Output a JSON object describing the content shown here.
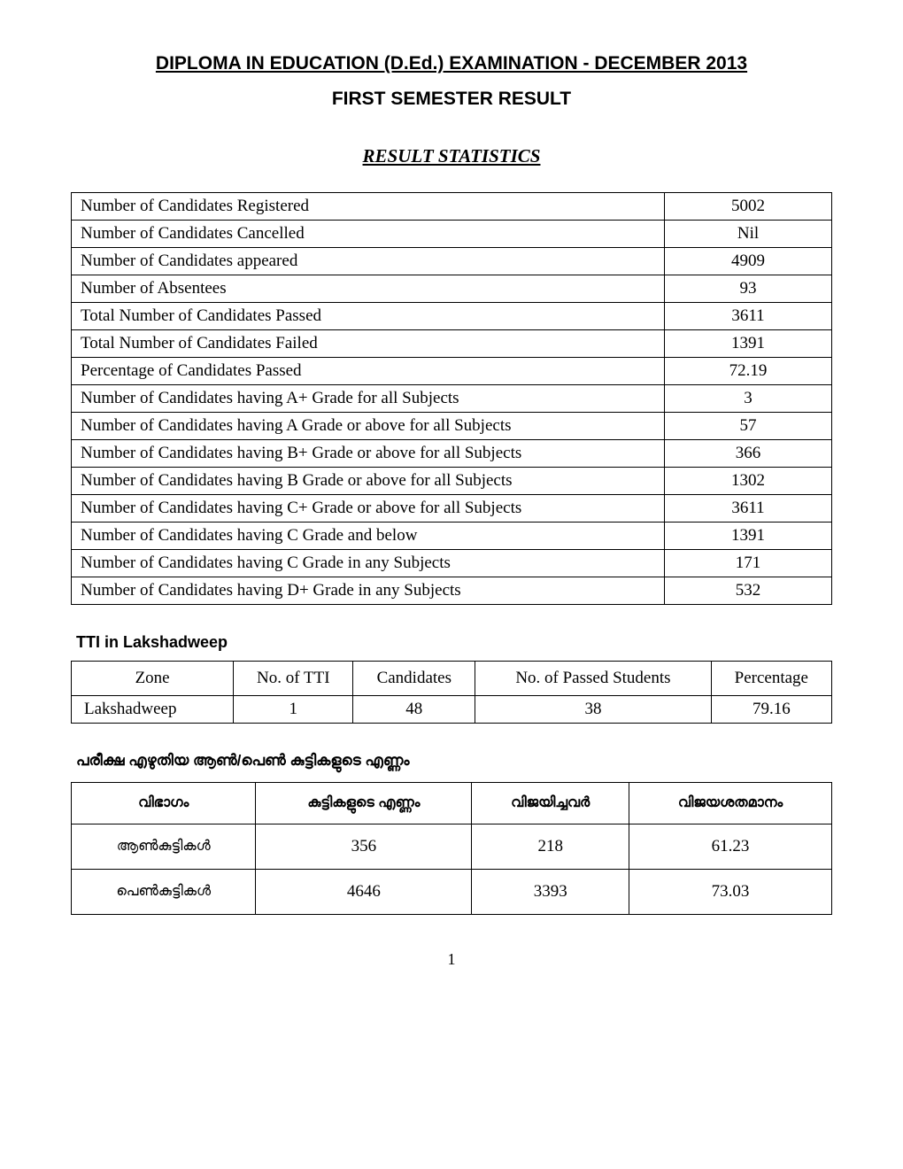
{
  "header": {
    "main_title": "DIPLOMA IN EDUCATION (D.Ed.) EXAMINATION - DECEMBER 2013",
    "sub_title": "FIRST SEMESTER RESULT",
    "section_title": "RESULT STATISTICS"
  },
  "stats": {
    "rows": [
      {
        "label": "Number of Candidates Registered",
        "value": "5002"
      },
      {
        "label": "Number of Candidates Cancelled",
        "value": "Nil"
      },
      {
        "label": "Number of Candidates appeared",
        "value": "4909"
      },
      {
        "label": "Number of Absentees",
        "value": "93"
      },
      {
        "label": "Total Number of Candidates Passed",
        "value": "3611"
      },
      {
        "label": "Total Number of Candidates Failed",
        "value": "1391"
      },
      {
        "label": "Percentage of Candidates Passed",
        "value": "72.19"
      },
      {
        "label": "Number of Candidates having A+ Grade for all Subjects",
        "value": "3"
      },
      {
        "label": "Number of Candidates having A Grade  or above  for all Subjects",
        "value": "57"
      },
      {
        "label": "Number of Candidates having B+ Grade  or above  for all Subjects",
        "value": "366"
      },
      {
        "label": "Number of Candidates having B Grade  or above  for all Subjects",
        "value": "1302"
      },
      {
        "label": "Number of Candidates having C+ Grade  or above  for all Subjects",
        "value": "3611"
      },
      {
        "label": "Number of Candidates having C Grade and below",
        "value": "1391"
      },
      {
        "label": "Number of Candidates having C Grade in any Subjects",
        "value": "171"
      },
      {
        "label": "Number of Candidates having D+ Grade in any Subjects",
        "value": "532"
      }
    ]
  },
  "tti": {
    "heading": "TTI in Lakshadweep",
    "columns": [
      "Zone",
      "No. of  TTI",
      "Candidates",
      "No. of Passed Students",
      "Percentage"
    ],
    "row": {
      "zone": "Lakshadweep",
      "no_tti": "1",
      "candidates": "48",
      "passed": "38",
      "percentage": "79.16"
    }
  },
  "gender": {
    "heading": "പരീക്ഷ എഴുതിയ ആൺ/പെൺ കുട്ടികളുടെ എണ്ണം",
    "columns": [
      "വിഭാഗം",
      "കുട്ടികളുടെ എണ്ണം",
      "വിജയിച്ചവർ",
      "വിജയശതമാനം"
    ],
    "rows": [
      {
        "category": "ആൺകുട്ടികൾ",
        "count": "356",
        "passed": "218",
        "percent": "61.23"
      },
      {
        "category": "പെൺകുട്ടികൾ",
        "count": "4646",
        "passed": "3393",
        "percent": "73.03"
      }
    ]
  },
  "page_number": "1"
}
